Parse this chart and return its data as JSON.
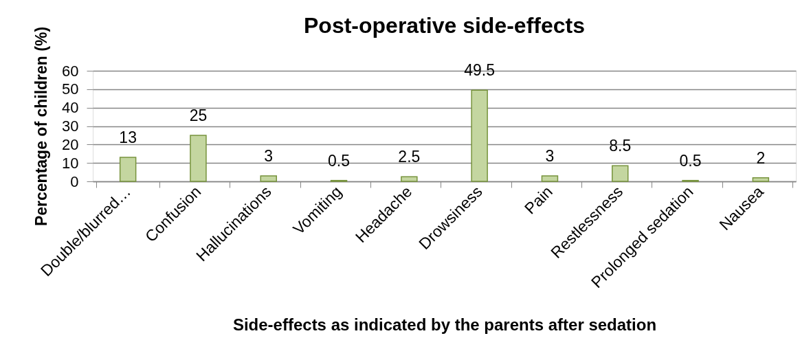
{
  "chart_data": {
    "type": "bar",
    "title": "Post-operative side-effects",
    "xlabel": "Side-effects as indicated by the parents after sedation",
    "ylabel": "Percentage of children (%)",
    "categories": [
      "Double/blurred…",
      "Confusion",
      "Hallucinations",
      "Vomiting",
      "Headache",
      "Drowsiness",
      "Pain",
      "Restlessness",
      "Prolonged sedation",
      "Nausea"
    ],
    "values": [
      13,
      25,
      3,
      0.5,
      2.5,
      49.5,
      3,
      8.5,
      0.5,
      2
    ],
    "color": "#c4d6a0",
    "ylim": [
      0,
      60
    ],
    "yticks": [
      0,
      10,
      20,
      30,
      40,
      50,
      60
    ],
    "grid": "y",
    "data_labels": true
  }
}
